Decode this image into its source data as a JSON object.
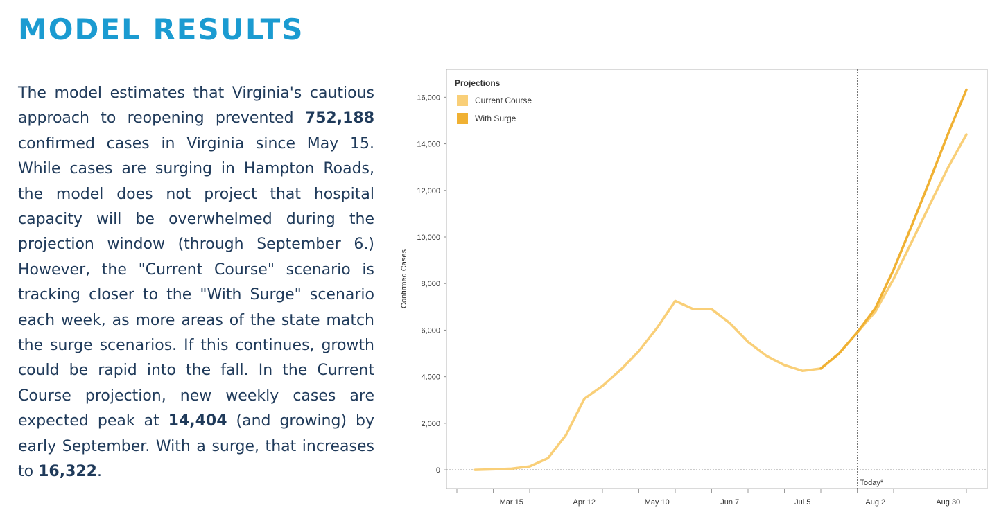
{
  "page": {
    "title": "MODEL RESULTS",
    "paragraph": [
      {
        "text": "The model estimates that Virginia's cautious approach to reopening prevented ",
        "bold": false
      },
      {
        "text": "752,188",
        "bold": true
      },
      {
        "text": " confirmed cases in Virginia since May 15. While cases are surging in Hampton Roads, the model does not project that hospital capacity will be overwhelmed during the projection window (through September 6.) However, the \"Current Course\" scenario is tracking closer to the \"With Surge\" scenario each week, as more areas of the state match the surge scenarios. If this continues, growth could be rapid into the fall. In the Current Course projection, new weekly cases are expected peak at ",
        "bold": false
      },
      {
        "text": "14,404",
        "bold": true
      },
      {
        "text": " (and growing) by early September. With a surge, that increases to ",
        "bold": false
      },
      {
        "text": "16,322",
        "bold": true
      },
      {
        "text": ".",
        "bold": false
      }
    ]
  },
  "chart_data": {
    "type": "line",
    "title": "",
    "ylabel": "Confirmed Cases",
    "xlabel": "",
    "ylim": [
      -800,
      17200
    ],
    "yticks": [
      0,
      2000,
      4000,
      6000,
      8000,
      10000,
      12000,
      14000,
      16000
    ],
    "ytick_labels": [
      "0",
      "2,000",
      "4,000",
      "6,000",
      "8,000",
      "10,000",
      "12,000",
      "14,000",
      "16,000"
    ],
    "xlim": [
      "2020-02-19",
      "2020-09-14"
    ],
    "xticks": [
      "2020-03-15",
      "2020-04-12",
      "2020-05-10",
      "2020-06-07",
      "2020-07-05",
      "2020-08-02",
      "2020-08-30"
    ],
    "xtick_labels": [
      "Mar 15",
      "Apr 12",
      "May 10",
      "Jun 7",
      "Jul 5",
      "Aug 2",
      "Aug 30"
    ],
    "today_marker": {
      "date": "2020-07-26",
      "label": "Today*"
    },
    "legend": {
      "title": "Projections",
      "position": "top-left"
    },
    "series": [
      {
        "name": "Current Course",
        "color": "#f9cf78",
        "points": [
          [
            "2020-03-01",
            0
          ],
          [
            "2020-03-08",
            20
          ],
          [
            "2020-03-15",
            50
          ],
          [
            "2020-03-22",
            150
          ],
          [
            "2020-03-29",
            500
          ],
          [
            "2020-04-05",
            1500
          ],
          [
            "2020-04-12",
            3050
          ],
          [
            "2020-04-19",
            3600
          ],
          [
            "2020-04-26",
            4300
          ],
          [
            "2020-05-03",
            5100
          ],
          [
            "2020-05-10",
            6100
          ],
          [
            "2020-05-17",
            7250
          ],
          [
            "2020-05-24",
            6900
          ],
          [
            "2020-05-31",
            6900
          ],
          [
            "2020-06-07",
            6300
          ],
          [
            "2020-06-14",
            5500
          ],
          [
            "2020-06-21",
            4900
          ],
          [
            "2020-06-28",
            4500
          ],
          [
            "2020-07-05",
            4250
          ],
          [
            "2020-07-12",
            4350
          ],
          [
            "2020-07-19",
            5000
          ],
          [
            "2020-07-26",
            5900
          ],
          [
            "2020-08-02",
            6800
          ],
          [
            "2020-08-09",
            8200
          ],
          [
            "2020-08-16",
            9800
          ],
          [
            "2020-08-23",
            11400
          ],
          [
            "2020-08-30",
            13000
          ],
          [
            "2020-09-06",
            14404
          ]
        ]
      },
      {
        "name": "With Surge",
        "color": "#f0b133",
        "points": [
          [
            "2020-07-12",
            4350
          ],
          [
            "2020-07-19",
            5000
          ],
          [
            "2020-07-26",
            5900
          ],
          [
            "2020-08-02",
            6950
          ],
          [
            "2020-08-09",
            8600
          ],
          [
            "2020-08-16",
            10500
          ],
          [
            "2020-08-23",
            12450
          ],
          [
            "2020-08-30",
            14450
          ],
          [
            "2020-09-06",
            16322
          ]
        ]
      }
    ]
  }
}
